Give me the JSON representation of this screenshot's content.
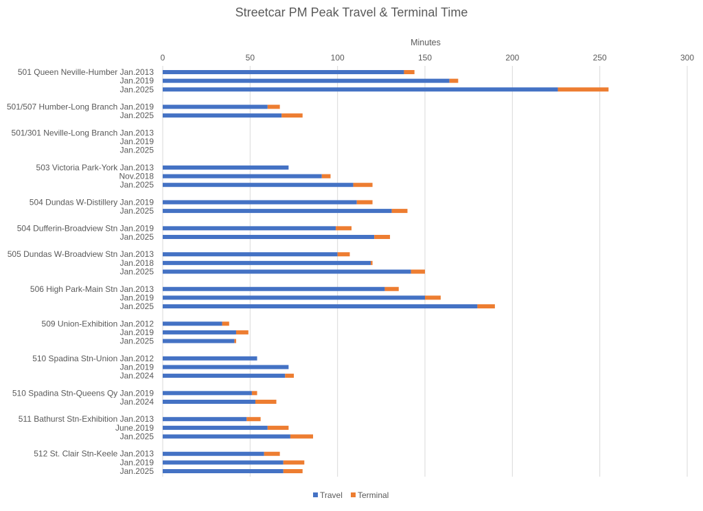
{
  "chart_data": {
    "type": "bar",
    "orientation": "horizontal",
    "stacked": true,
    "title": "Streetcar PM Peak Travel & Terminal Time",
    "xlabel": "Minutes",
    "xlim": [
      0,
      300
    ],
    "xticks": [
      0,
      50,
      100,
      150,
      200,
      250,
      300
    ],
    "xaxis_position": "top",
    "grid": true,
    "legend": "bottom",
    "categories": [
      "501 Queen Neville-Humber Jan.2013",
      "Jan.2019",
      "Jan.2025",
      "",
      "501/507 Humber-Long Branch Jan.2019",
      "Jan.2025",
      "",
      "501/301 Neville-Long Branch Jan.2013",
      "Jan.2019",
      "Jan.2025",
      "",
      "503 Victoria Park-York Jan.2013",
      "Nov.2018",
      "Jan.2025",
      "",
      "504 Dundas W-Distillery Jan.2019",
      "Jan.2025",
      "",
      "504 Dufferin-Broadview Stn Jan.2019",
      "Jan.2025",
      "",
      "505 Dundas W-Broadview Stn Jan.2013",
      "Jan.2018",
      "Jan.2025",
      "",
      "506 High Park-Main Stn Jan.2013",
      "Jan.2019",
      "Jan.2025",
      "",
      "509 Union-Exhibition Jan.2012",
      "Jan.2019",
      "Jan.2025",
      "",
      "510 Spadina Stn-Union Jan.2012",
      "Jan.2019",
      "Jan.2024",
      "",
      "510 Spadina Stn-Queens Qy Jan.2019",
      "Jan.2024",
      "",
      "511 Bathurst Stn-Exhibition Jan.2013",
      "June.2019",
      "Jan.2025",
      "",
      "512 St. Clair Stn-Keele Jan.2013",
      "Jan.2019",
      "Jan.2025"
    ],
    "series": [
      {
        "name": "Travel",
        "color": "#4472C4",
        "values": [
          138,
          164,
          226,
          null,
          60,
          68,
          null,
          null,
          null,
          null,
          null,
          72,
          91,
          109,
          null,
          111,
          131,
          null,
          99,
          121,
          null,
          100,
          119,
          142,
          null,
          127,
          150,
          180,
          null,
          34,
          42,
          41,
          null,
          54,
          72,
          70,
          null,
          51,
          53,
          null,
          48,
          60,
          73,
          null,
          58,
          69,
          69
        ]
      },
      {
        "name": "Terminal",
        "color": "#ED7D31",
        "values": [
          6,
          5,
          29,
          null,
          7,
          12,
          null,
          null,
          null,
          null,
          null,
          0,
          5,
          11,
          null,
          9,
          9,
          null,
          9,
          9,
          null,
          7,
          1,
          8,
          null,
          8,
          9,
          10,
          null,
          4,
          7,
          1,
          null,
          0,
          0,
          5,
          null,
          3,
          12,
          null,
          8,
          12,
          13,
          null,
          9,
          12,
          11
        ]
      }
    ]
  }
}
